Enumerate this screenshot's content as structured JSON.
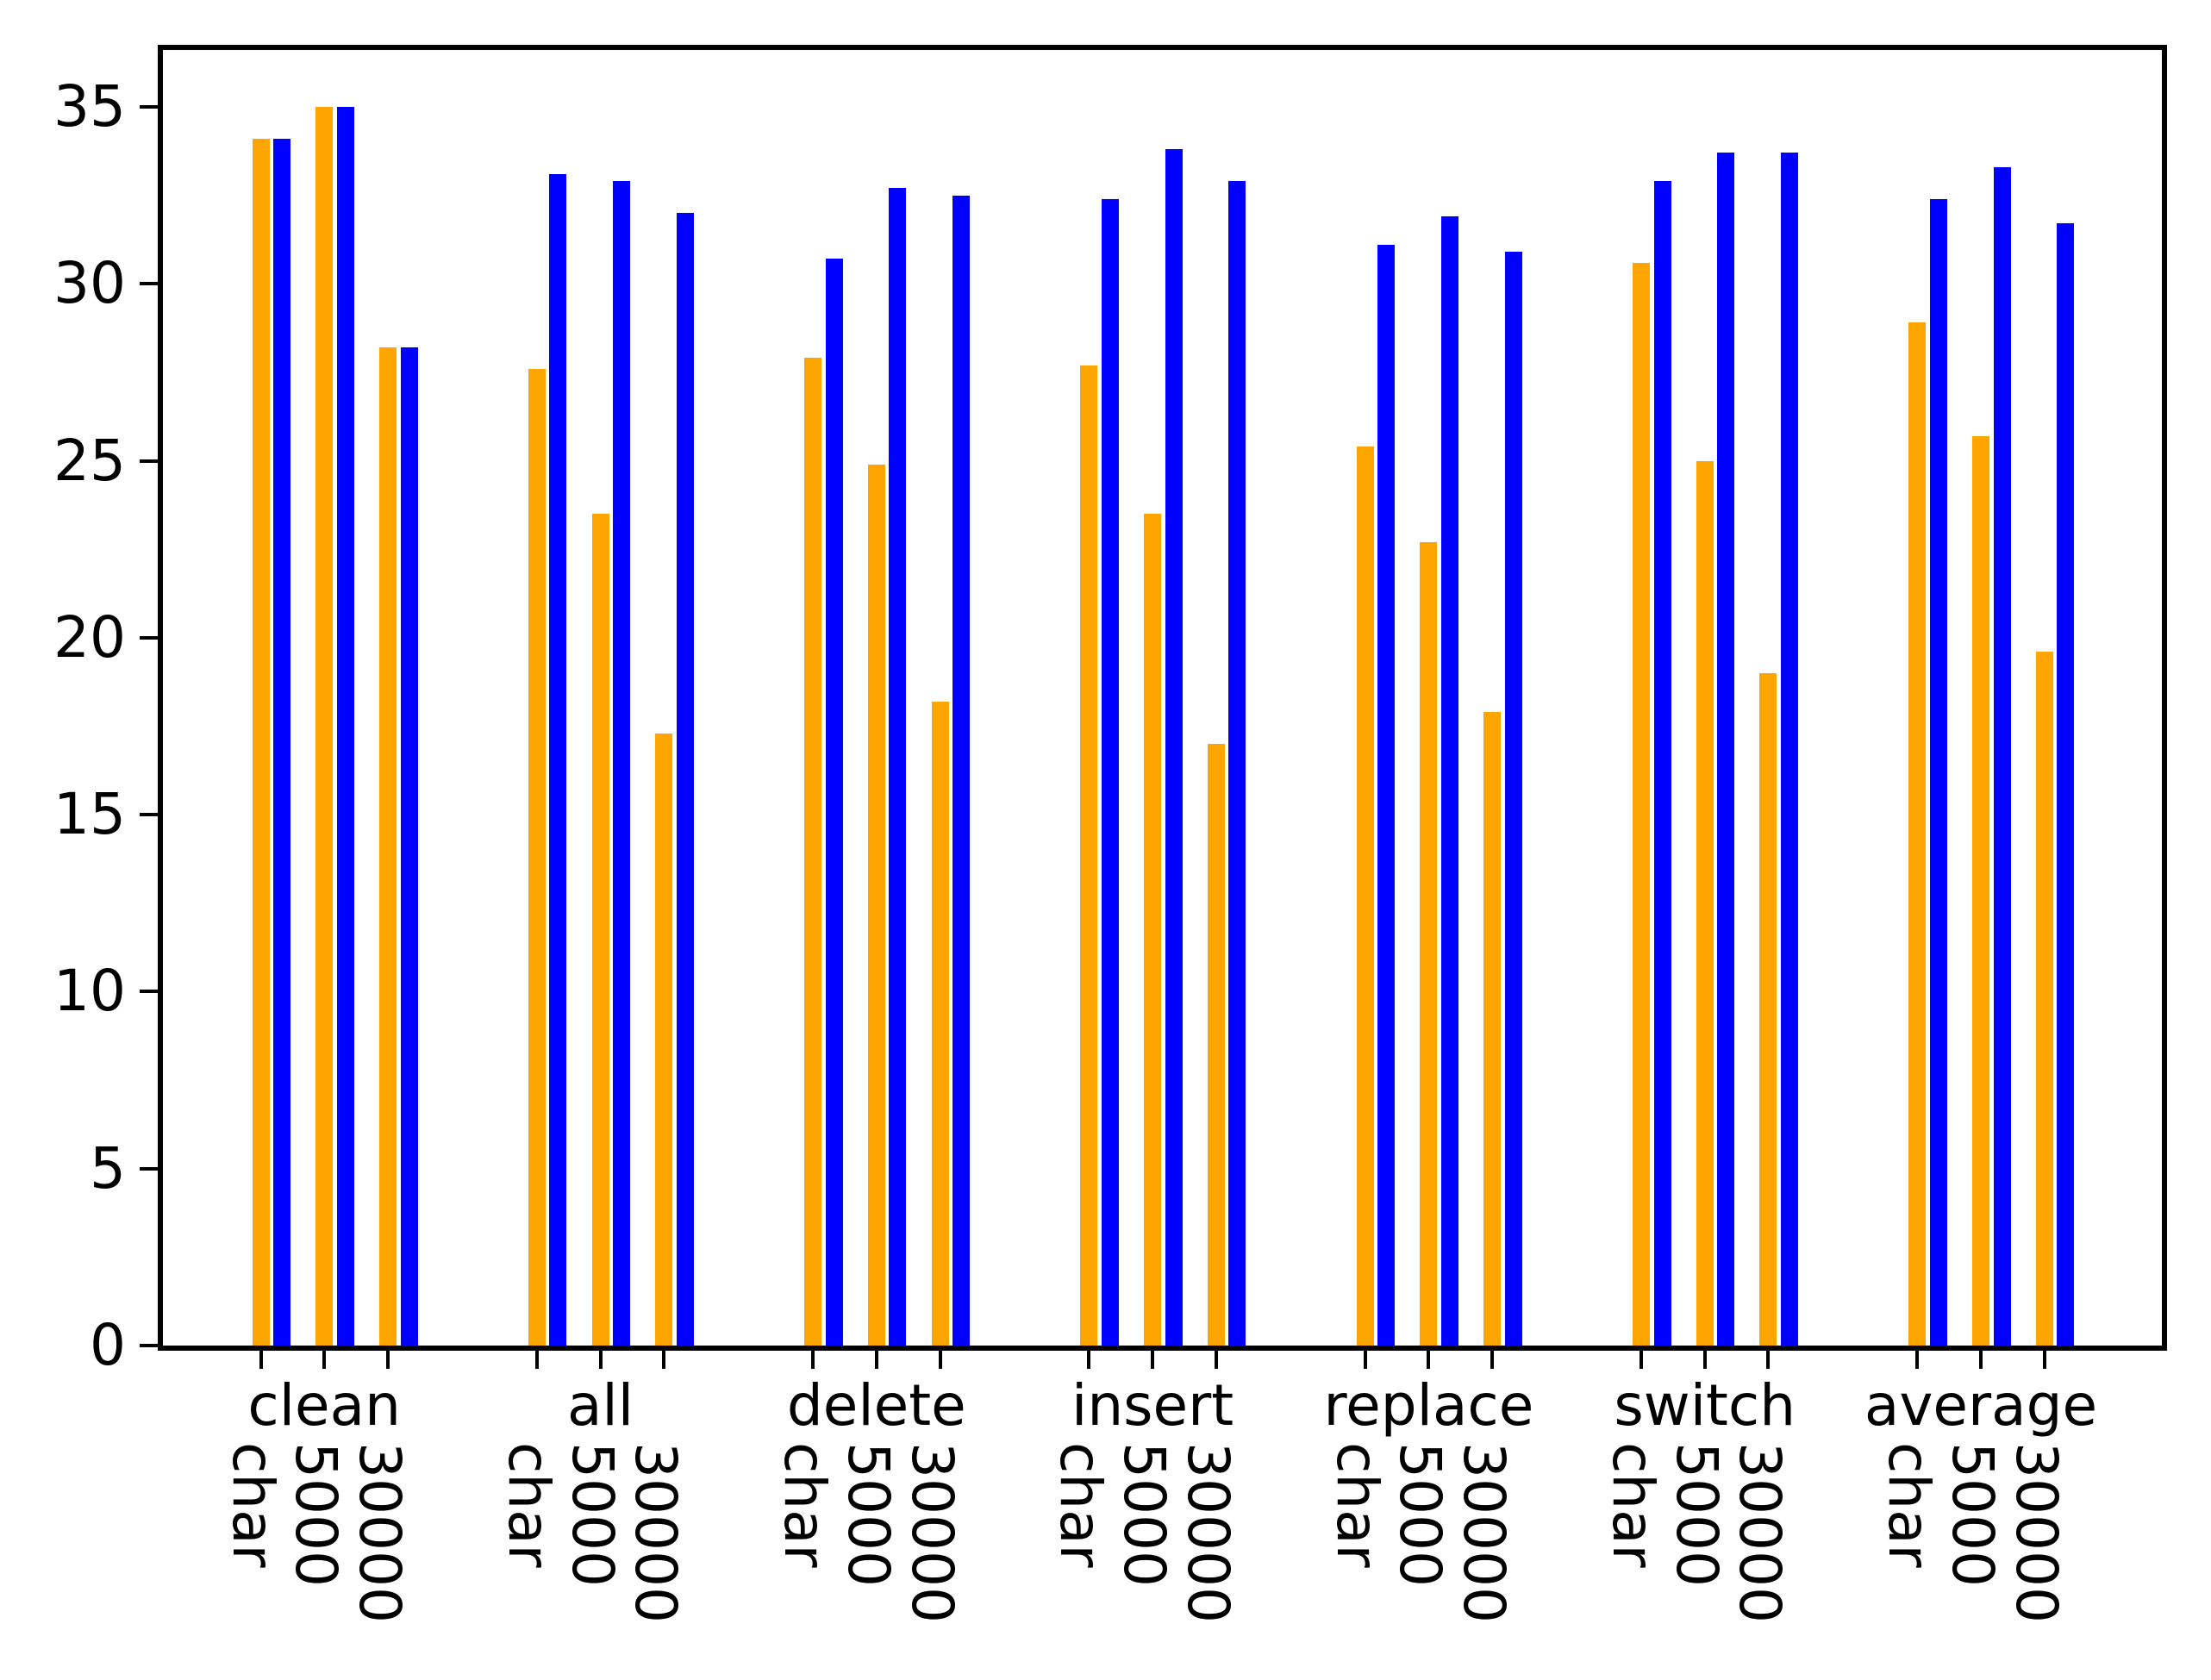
{
  "chart_data": {
    "type": "bar",
    "title": "",
    "xlabel": "",
    "ylabel": "",
    "groups": [
      "clean",
      "all",
      "delete",
      "insert",
      "replace",
      "switch",
      "average"
    ],
    "subgroups": [
      "char",
      "5000",
      "30000"
    ],
    "series": [
      {
        "name": "orange",
        "color": "#FFA500",
        "values": [
          [
            34.1,
            35.0,
            28.2
          ],
          [
            27.6,
            23.5,
            17.3
          ],
          [
            27.9,
            24.9,
            18.2
          ],
          [
            27.7,
            23.5,
            17.0
          ],
          [
            25.4,
            22.7,
            17.9
          ],
          [
            30.6,
            25.0,
            19.0
          ],
          [
            28.9,
            25.7,
            19.6
          ]
        ]
      },
      {
        "name": "blue",
        "color": "#0000FF",
        "values": [
          [
            34.1,
            35.0,
            28.2
          ],
          [
            33.1,
            32.9,
            32.0
          ],
          [
            30.7,
            32.7,
            32.5
          ],
          [
            32.4,
            33.8,
            32.9
          ],
          [
            31.1,
            31.9,
            30.9
          ],
          [
            32.9,
            33.7,
            33.7
          ],
          [
            32.4,
            33.3,
            31.7
          ]
        ]
      }
    ],
    "y_ticks": [
      "0",
      "5",
      "10",
      "15",
      "20",
      "25",
      "30",
      "35"
    ],
    "y_tick_values": [
      0,
      5,
      10,
      15,
      20,
      25,
      30,
      35
    ],
    "ylim": [
      0,
      36.7
    ],
    "grid": false,
    "legend": null,
    "axis_color": "#000000",
    "background": "#FFFFFF"
  }
}
